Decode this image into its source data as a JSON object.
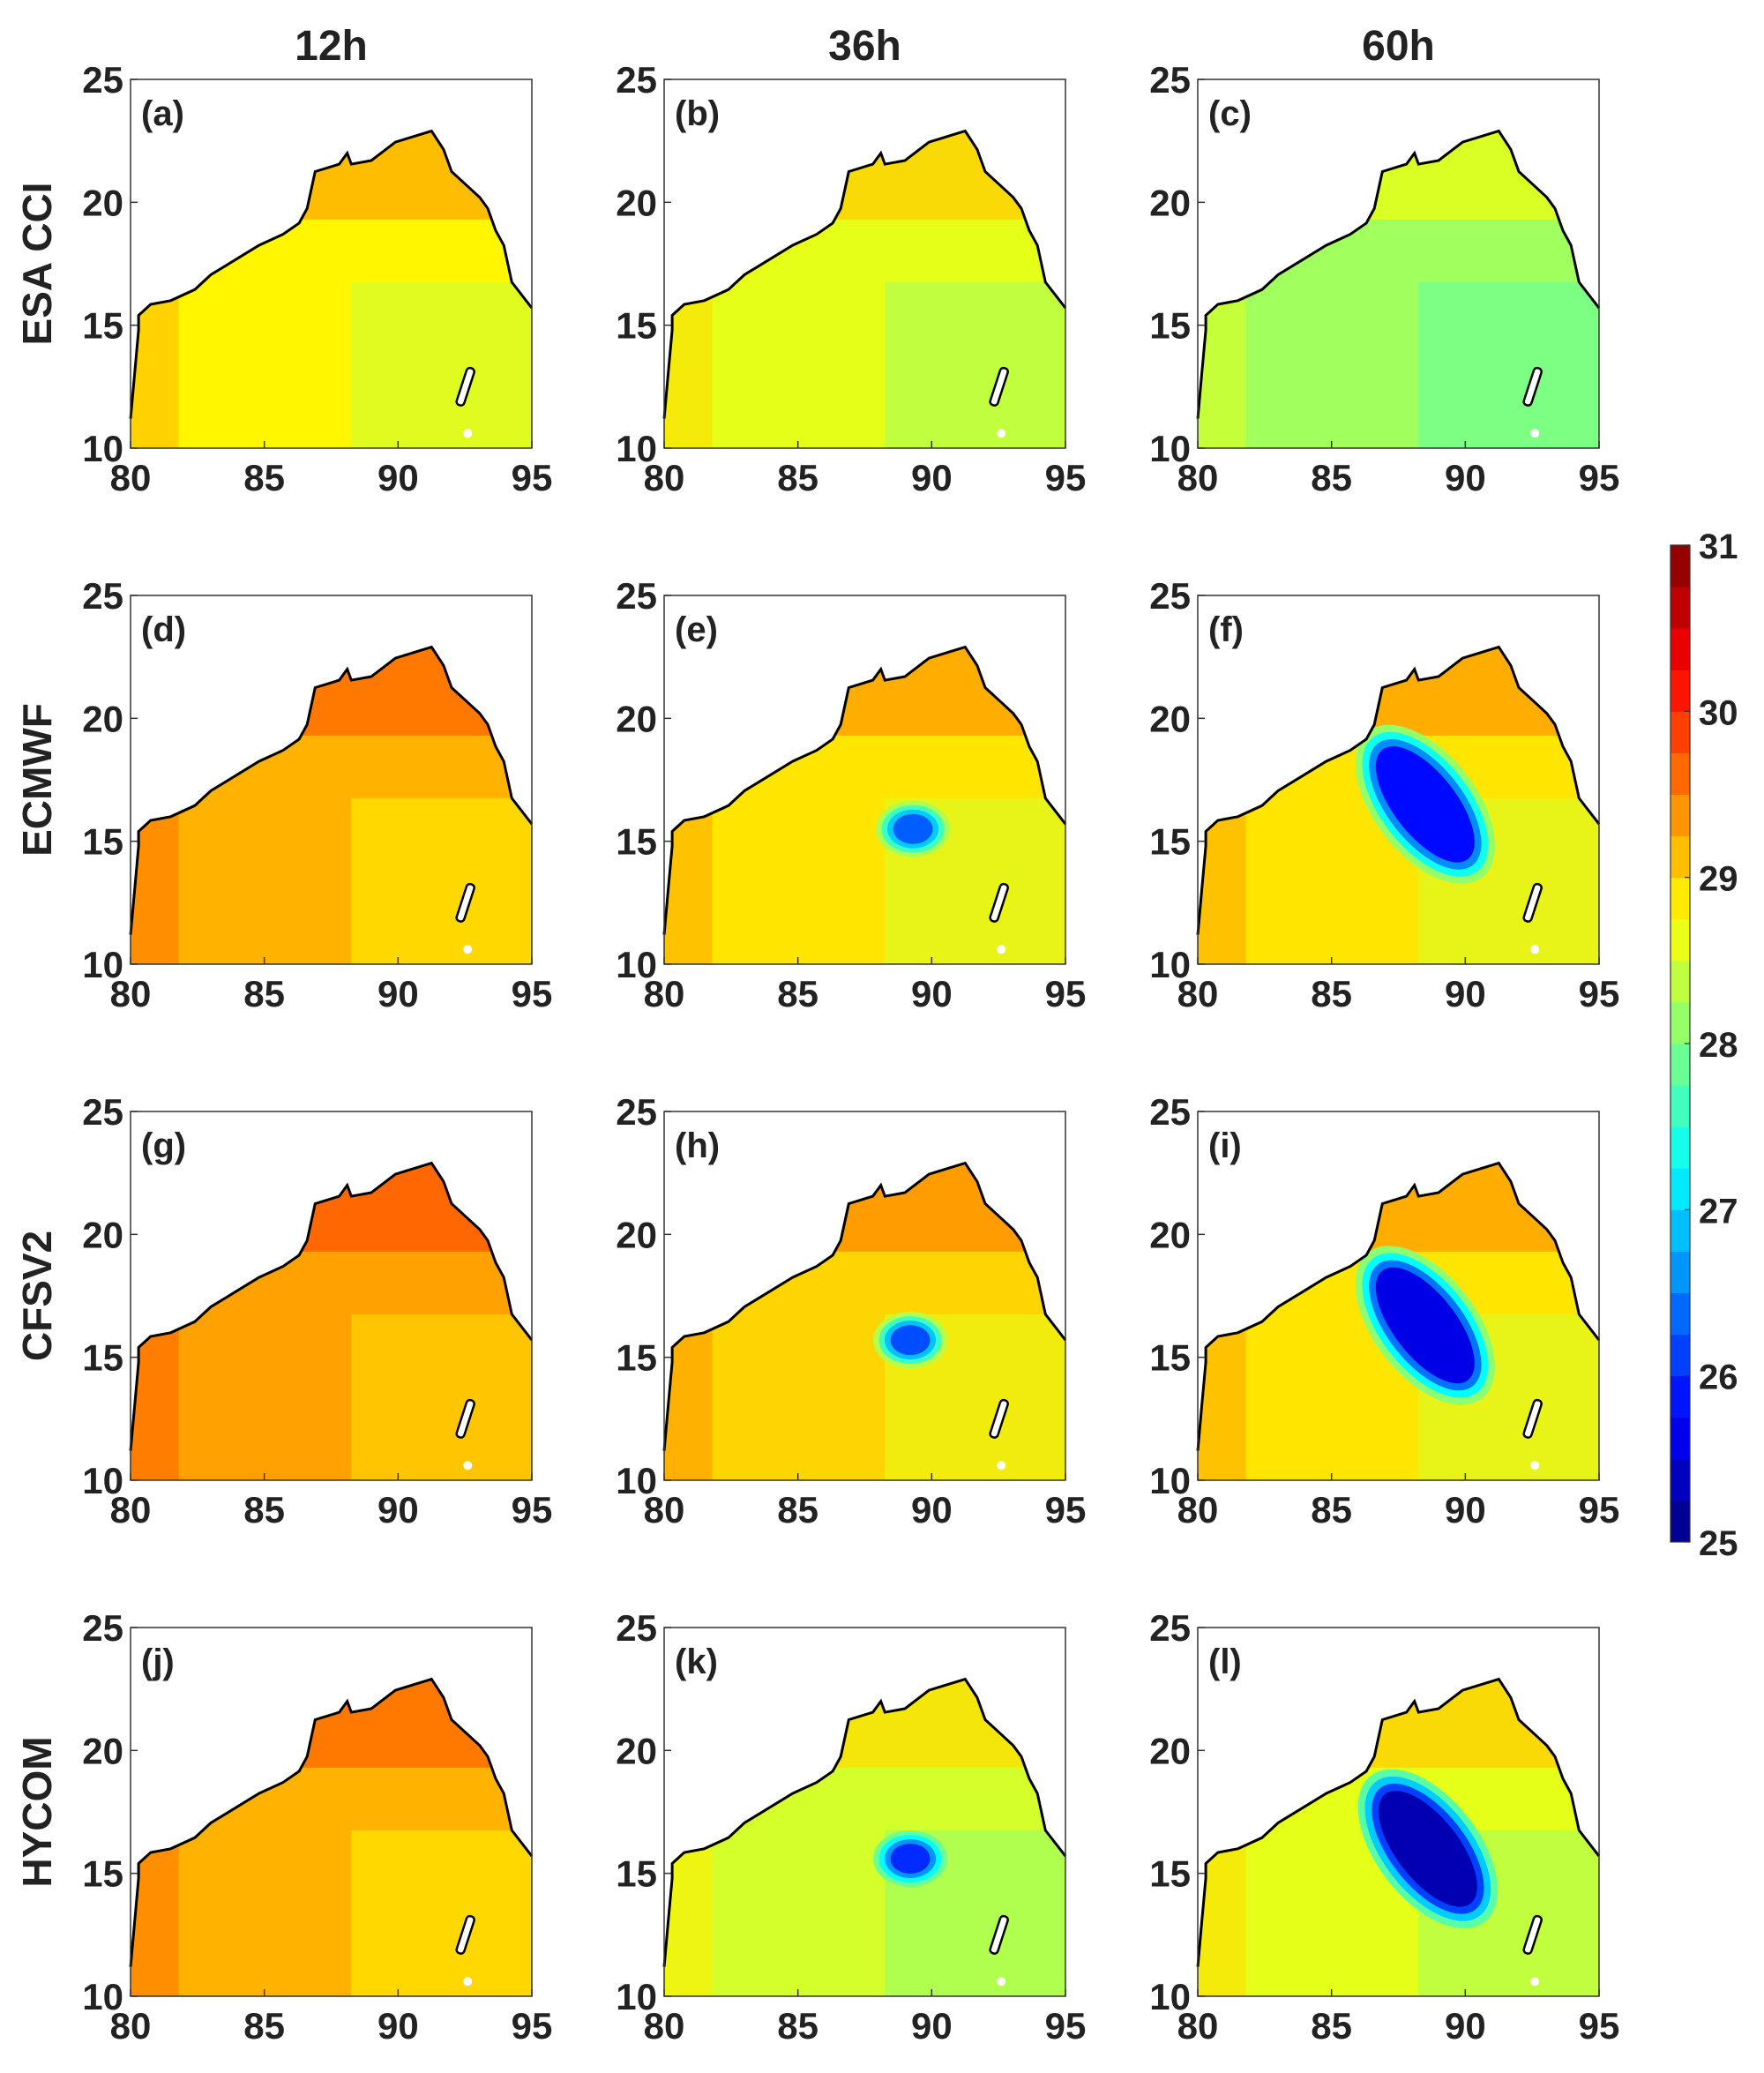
{
  "chart_data": {
    "type": "heatmap",
    "title": "",
    "columns": [
      "12h",
      "36h",
      "60h"
    ],
    "rows": [
      "ESA CCI",
      "ECMWF",
      "CFSV2",
      "HYCOM"
    ],
    "xlim": [
      80,
      95
    ],
    "ylim": [
      10,
      25
    ],
    "xticks": [
      "80",
      "85",
      "90",
      "95"
    ],
    "yticks": [
      "10",
      "15",
      "20",
      "25"
    ],
    "panels": [
      {
        "label": "(a)",
        "row": "ESA CCI",
        "col": "12h",
        "background": 28.8,
        "cold_core": null
      },
      {
        "label": "(b)",
        "row": "ESA CCI",
        "col": "36h",
        "background": 28.6,
        "cold_core": null
      },
      {
        "label": "(c)",
        "row": "ESA CCI",
        "col": "60h",
        "background": 28.2,
        "cold_core": null
      },
      {
        "label": "(d)",
        "row": "ECMWF",
        "col": "12h",
        "background": 29.2,
        "cold_core": null
      },
      {
        "label": "(e)",
        "row": "ECMWF",
        "col": "36h",
        "background": 28.9,
        "cold_core": {
          "lon": 89.3,
          "lat": 15.5,
          "min": 26.3,
          "shape": "spot"
        }
      },
      {
        "label": "(f)",
        "row": "ECMWF",
        "col": "60h",
        "background": 28.9,
        "cold_core": {
          "lon": 88.5,
          "lat": 16.5,
          "min": 25.8,
          "shape": "band"
        }
      },
      {
        "label": "(g)",
        "row": "CFSV2",
        "col": "12h",
        "background": 29.3,
        "cold_core": null
      },
      {
        "label": "(h)",
        "row": "CFSV2",
        "col": "36h",
        "background": 29.0,
        "cold_core": {
          "lon": 89.2,
          "lat": 15.7,
          "min": 26.2,
          "shape": "spot"
        }
      },
      {
        "label": "(i)",
        "row": "CFSV2",
        "col": "60h",
        "background": 28.9,
        "cold_core": {
          "lon": 88.5,
          "lat": 16.3,
          "min": 25.6,
          "shape": "band"
        }
      },
      {
        "label": "(j)",
        "row": "HYCOM",
        "col": "12h",
        "background": 29.2,
        "cold_core": null
      },
      {
        "label": "(k)",
        "row": "HYCOM",
        "col": "36h",
        "background": 28.5,
        "cold_core": {
          "lon": 89.2,
          "lat": 15.6,
          "min": 26.0,
          "shape": "spot"
        }
      },
      {
        "label": "(l)",
        "row": "HYCOM",
        "col": "60h",
        "background": 28.6,
        "cold_core": {
          "lon": 88.6,
          "lat": 16.0,
          "min": 25.3,
          "shape": "band"
        }
      }
    ],
    "colorbar": {
      "min": 25,
      "max": 31,
      "ticks": [
        "25",
        "26",
        "27",
        "28",
        "29",
        "30",
        "31"
      ],
      "colormap": "jet",
      "levels": 24
    }
  }
}
